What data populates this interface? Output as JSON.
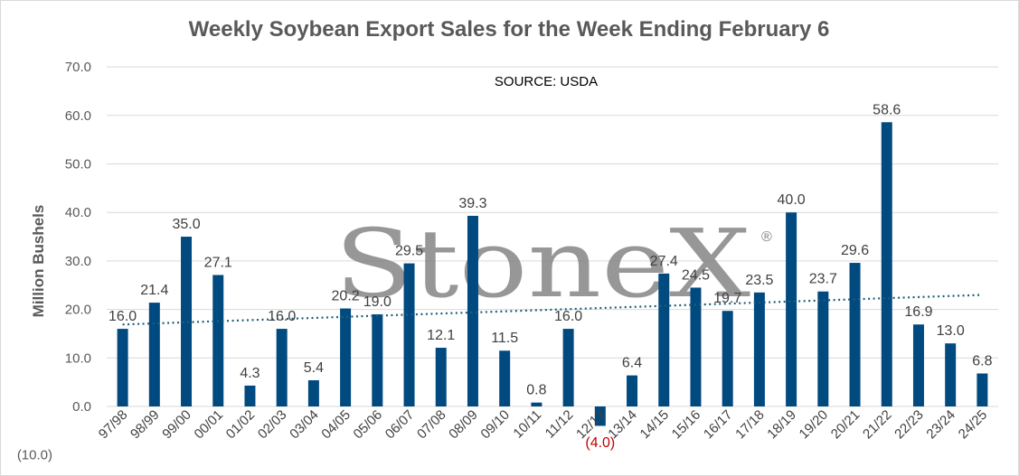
{
  "chart_data": {
    "type": "bar",
    "title": "Weekly Soybean Export Sales for the Week Ending February 6",
    "annotation": "SOURCE: USDA",
    "ylabel": "Million Bushels",
    "xlabel": "",
    "ylim": [
      -10,
      70
    ],
    "y_ticks": [
      "(10.0)",
      "0.0",
      "10.0",
      "20.0",
      "30.0",
      "40.0",
      "50.0",
      "60.0",
      "70.0"
    ],
    "y_tick_values": [
      -10,
      0,
      10,
      20,
      30,
      40,
      50,
      60,
      70
    ],
    "categories": [
      "97/98",
      "98/99",
      "99/00",
      "00/01",
      "01/02",
      "02/03",
      "03/04",
      "04/05",
      "05/06",
      "06/07",
      "07/08",
      "08/09",
      "09/10",
      "10/11",
      "11/12",
      "12/13",
      "13/14",
      "14/15",
      "15/16",
      "16/17",
      "17/18",
      "18/19",
      "19/20",
      "20/21",
      "21/22",
      "22/23",
      "23/24",
      "24/25"
    ],
    "values": [
      16.0,
      21.4,
      35.0,
      27.1,
      4.3,
      16.0,
      5.4,
      20.2,
      19.0,
      29.5,
      12.1,
      39.3,
      11.5,
      0.8,
      16.0,
      -4.0,
      6.4,
      27.4,
      24.5,
      19.7,
      23.5,
      40.0,
      23.7,
      29.6,
      58.6,
      16.9,
      13.0,
      6.8
    ],
    "data_labels": [
      "16.0",
      "21.4",
      "35.0",
      "27.1",
      "4.3",
      "16.0",
      "5.4",
      "20.2",
      "19.0",
      "29.5",
      "12.1",
      "39.3",
      "11.5",
      "0.8",
      "16.0",
      "(4.0)",
      "6.4",
      "27.4",
      "24.5",
      "19.7",
      "23.5",
      "40.0",
      "23.7",
      "29.6",
      "58.6",
      "16.9",
      "13.0",
      "6.8"
    ],
    "trendline": {
      "type": "linear",
      "style": "dotted",
      "start": 16.9,
      "end": 23.0
    },
    "grid": true,
    "legend": "none",
    "colors": {
      "bar": "#004a80",
      "trendline": "#1f5f7a",
      "negative_label": "#c00000",
      "grid": "#d9d9d9",
      "title": "#595959"
    }
  },
  "watermark": {
    "text": "StoneX",
    "registered_mark": "®"
  }
}
